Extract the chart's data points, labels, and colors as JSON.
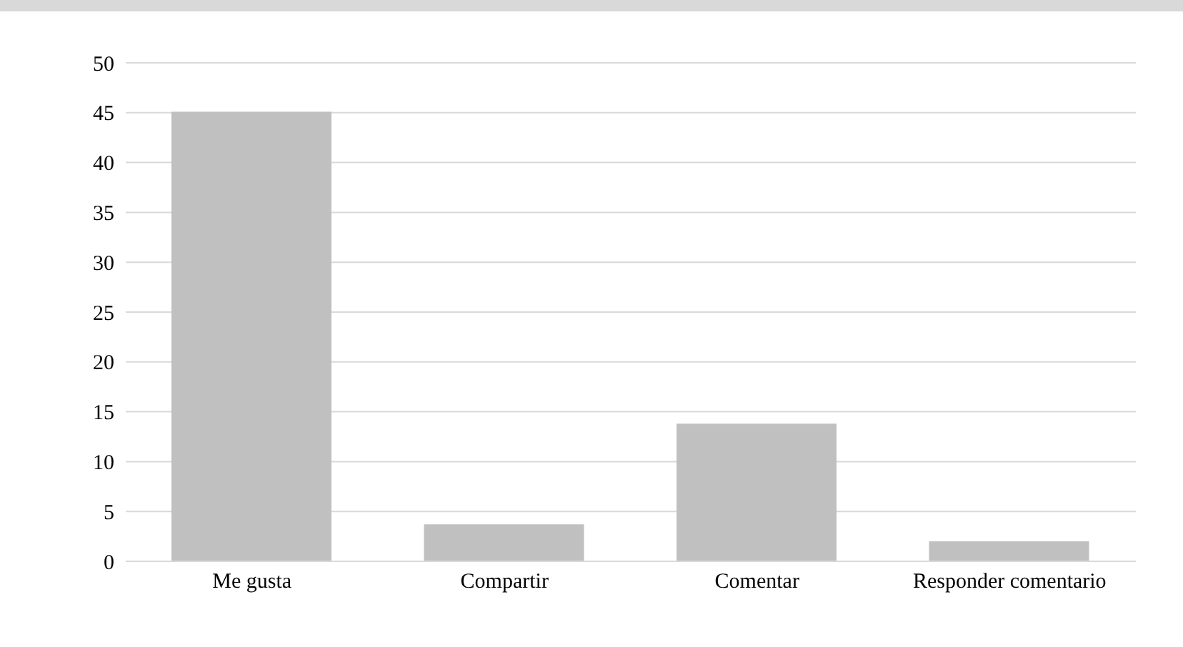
{
  "chart_data": {
    "type": "bar",
    "categories": [
      "Me gusta",
      "Compartir",
      "Comentar",
      "Responder comentario"
    ],
    "values": [
      45.1,
      3.7,
      13.8,
      2.0
    ],
    "color": "#c0c0c0",
    "ylim": [
      0,
      50
    ],
    "yticks": [
      0,
      5,
      10,
      15,
      20,
      25,
      30,
      35,
      40,
      45,
      50
    ],
    "grid": "y"
  }
}
